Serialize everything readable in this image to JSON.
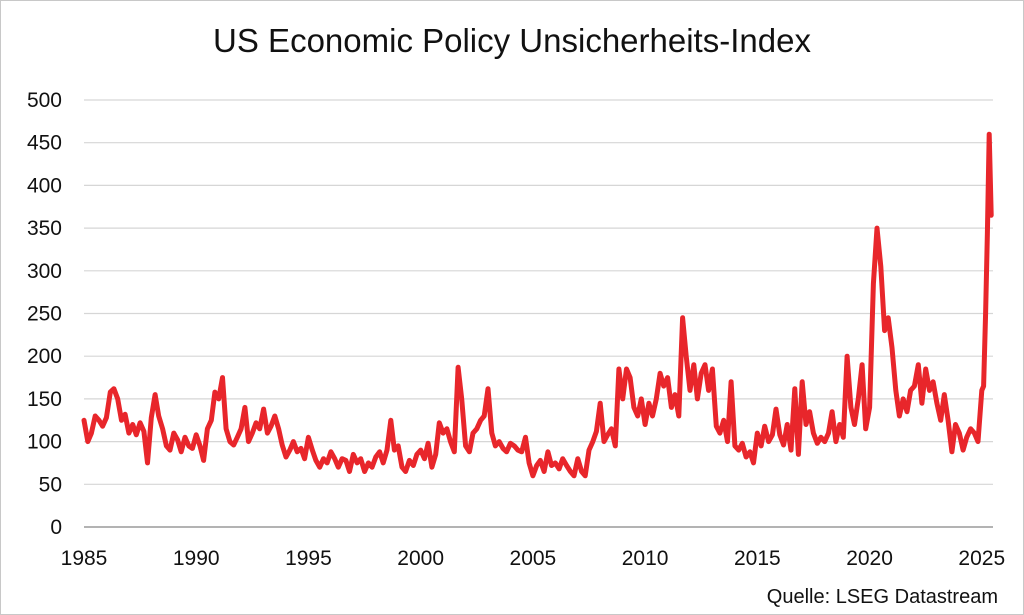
{
  "title": "US Economic Policy Unsicherheits-Index",
  "source": "Quelle: LSEG Datastream",
  "chart_data": {
    "type": "line",
    "title": "US Economic Policy Unsicherheits-Index",
    "xlabel": "",
    "ylabel": "",
    "xlim": [
      1985,
      2025.5
    ],
    "ylim": [
      0,
      500
    ],
    "x_ticks": [
      "1985",
      "1990",
      "1995",
      "2000",
      "2005",
      "2010",
      "2015",
      "2020",
      "2025"
    ],
    "y_ticks": [
      "0",
      "50",
      "100",
      "150",
      "200",
      "250",
      "300",
      "350",
      "400",
      "450",
      "500"
    ],
    "grid": "horizontal",
    "legend": "none",
    "series": [
      {
        "color": "#e8262b",
        "points": [
          [
            1985.0,
            125
          ],
          [
            1985.17,
            100
          ],
          [
            1985.33,
            110
          ],
          [
            1985.5,
            130
          ],
          [
            1985.67,
            125
          ],
          [
            1985.83,
            118
          ],
          [
            1986.0,
            128
          ],
          [
            1986.17,
            158
          ],
          [
            1986.33,
            162
          ],
          [
            1986.5,
            150
          ],
          [
            1986.67,
            125
          ],
          [
            1986.83,
            132
          ],
          [
            1987.0,
            110
          ],
          [
            1987.17,
            120
          ],
          [
            1987.33,
            108
          ],
          [
            1987.5,
            122
          ],
          [
            1987.67,
            112
          ],
          [
            1987.83,
            75
          ],
          [
            1988.0,
            128
          ],
          [
            1988.17,
            155
          ],
          [
            1988.33,
            130
          ],
          [
            1988.5,
            115
          ],
          [
            1988.67,
            95
          ],
          [
            1988.83,
            90
          ],
          [
            1989.0,
            110
          ],
          [
            1989.17,
            102
          ],
          [
            1989.33,
            88
          ],
          [
            1989.5,
            105
          ],
          [
            1989.67,
            95
          ],
          [
            1989.83,
            92
          ],
          [
            1990.0,
            108
          ],
          [
            1990.17,
            95
          ],
          [
            1990.33,
            78
          ],
          [
            1990.5,
            115
          ],
          [
            1990.67,
            125
          ],
          [
            1990.83,
            158
          ],
          [
            1991.0,
            150
          ],
          [
            1991.17,
            175
          ],
          [
            1991.33,
            115
          ],
          [
            1991.5,
            100
          ],
          [
            1991.67,
            96
          ],
          [
            1991.83,
            105
          ],
          [
            1992.0,
            115
          ],
          [
            1992.17,
            140
          ],
          [
            1992.33,
            100
          ],
          [
            1992.5,
            110
          ],
          [
            1992.67,
            122
          ],
          [
            1992.83,
            115
          ],
          [
            1993.0,
            138
          ],
          [
            1993.17,
            110
          ],
          [
            1993.33,
            118
          ],
          [
            1993.5,
            130
          ],
          [
            1993.67,
            115
          ],
          [
            1993.83,
            96
          ],
          [
            1994.0,
            82
          ],
          [
            1994.17,
            90
          ],
          [
            1994.33,
            100
          ],
          [
            1994.5,
            88
          ],
          [
            1994.67,
            92
          ],
          [
            1994.83,
            80
          ],
          [
            1995.0,
            105
          ],
          [
            1995.17,
            90
          ],
          [
            1995.33,
            78
          ],
          [
            1995.5,
            70
          ],
          [
            1995.67,
            80
          ],
          [
            1995.83,
            75
          ],
          [
            1996.0,
            88
          ],
          [
            1996.17,
            80
          ],
          [
            1996.33,
            70
          ],
          [
            1996.5,
            80
          ],
          [
            1996.67,
            78
          ],
          [
            1996.83,
            65
          ],
          [
            1997.0,
            85
          ],
          [
            1997.17,
            75
          ],
          [
            1997.33,
            80
          ],
          [
            1997.5,
            65
          ],
          [
            1997.67,
            75
          ],
          [
            1997.83,
            70
          ],
          [
            1998.0,
            82
          ],
          [
            1998.17,
            88
          ],
          [
            1998.33,
            75
          ],
          [
            1998.5,
            90
          ],
          [
            1998.67,
            125
          ],
          [
            1998.83,
            90
          ],
          [
            1999.0,
            95
          ],
          [
            1999.17,
            70
          ],
          [
            1999.33,
            65
          ],
          [
            1999.5,
            78
          ],
          [
            1999.67,
            72
          ],
          [
            1999.83,
            85
          ],
          [
            2000.0,
            90
          ],
          [
            2000.17,
            80
          ],
          [
            2000.33,
            98
          ],
          [
            2000.5,
            70
          ],
          [
            2000.67,
            85
          ],
          [
            2000.83,
            122
          ],
          [
            2001.0,
            110
          ],
          [
            2001.17,
            115
          ],
          [
            2001.33,
            100
          ],
          [
            2001.5,
            88
          ],
          [
            2001.67,
            187
          ],
          [
            2001.83,
            150
          ],
          [
            2002.0,
            95
          ],
          [
            2002.17,
            88
          ],
          [
            2002.33,
            110
          ],
          [
            2002.5,
            115
          ],
          [
            2002.67,
            125
          ],
          [
            2002.83,
            130
          ],
          [
            2003.0,
            162
          ],
          [
            2003.17,
            110
          ],
          [
            2003.33,
            95
          ],
          [
            2003.5,
            100
          ],
          [
            2003.67,
            92
          ],
          [
            2003.83,
            88
          ],
          [
            2004.0,
            98
          ],
          [
            2004.17,
            95
          ],
          [
            2004.33,
            90
          ],
          [
            2004.5,
            88
          ],
          [
            2004.67,
            105
          ],
          [
            2004.83,
            75
          ],
          [
            2005.0,
            60
          ],
          [
            2005.17,
            72
          ],
          [
            2005.33,
            78
          ],
          [
            2005.5,
            65
          ],
          [
            2005.67,
            88
          ],
          [
            2005.83,
            72
          ],
          [
            2006.0,
            75
          ],
          [
            2006.17,
            68
          ],
          [
            2006.33,
            80
          ],
          [
            2006.5,
            72
          ],
          [
            2006.67,
            65
          ],
          [
            2006.83,
            60
          ],
          [
            2007.0,
            80
          ],
          [
            2007.17,
            65
          ],
          [
            2007.33,
            60
          ],
          [
            2007.5,
            90
          ],
          [
            2007.67,
            100
          ],
          [
            2007.83,
            112
          ],
          [
            2008.0,
            145
          ],
          [
            2008.17,
            100
          ],
          [
            2008.33,
            108
          ],
          [
            2008.5,
            115
          ],
          [
            2008.67,
            95
          ],
          [
            2008.83,
            185
          ],
          [
            2009.0,
            150
          ],
          [
            2009.17,
            185
          ],
          [
            2009.33,
            175
          ],
          [
            2009.5,
            140
          ],
          [
            2009.67,
            130
          ],
          [
            2009.83,
            150
          ],
          [
            2010.0,
            120
          ],
          [
            2010.17,
            145
          ],
          [
            2010.33,
            130
          ],
          [
            2010.5,
            150
          ],
          [
            2010.67,
            180
          ],
          [
            2010.83,
            165
          ],
          [
            2011.0,
            175
          ],
          [
            2011.17,
            140
          ],
          [
            2011.33,
            155
          ],
          [
            2011.5,
            130
          ],
          [
            2011.67,
            245
          ],
          [
            2011.83,
            200
          ],
          [
            2012.0,
            160
          ],
          [
            2012.17,
            190
          ],
          [
            2012.33,
            150
          ],
          [
            2012.5,
            180
          ],
          [
            2012.67,
            190
          ],
          [
            2012.83,
            160
          ],
          [
            2013.0,
            185
          ],
          [
            2013.17,
            118
          ],
          [
            2013.33,
            110
          ],
          [
            2013.5,
            125
          ],
          [
            2013.67,
            100
          ],
          [
            2013.83,
            170
          ],
          [
            2014.0,
            95
          ],
          [
            2014.17,
            90
          ],
          [
            2014.33,
            98
          ],
          [
            2014.5,
            82
          ],
          [
            2014.67,
            88
          ],
          [
            2014.83,
            75
          ],
          [
            2015.0,
            110
          ],
          [
            2015.17,
            95
          ],
          [
            2015.33,
            118
          ],
          [
            2015.5,
            100
          ],
          [
            2015.67,
            108
          ],
          [
            2015.83,
            138
          ],
          [
            2016.0,
            108
          ],
          [
            2016.17,
            96
          ],
          [
            2016.33,
            120
          ],
          [
            2016.5,
            90
          ],
          [
            2016.67,
            162
          ],
          [
            2016.83,
            85
          ],
          [
            2017.0,
            170
          ],
          [
            2017.17,
            120
          ],
          [
            2017.33,
            135
          ],
          [
            2017.5,
            110
          ],
          [
            2017.67,
            98
          ],
          [
            2017.83,
            105
          ],
          [
            2018.0,
            100
          ],
          [
            2018.17,
            110
          ],
          [
            2018.33,
            135
          ],
          [
            2018.5,
            100
          ],
          [
            2018.67,
            120
          ],
          [
            2018.83,
            105
          ],
          [
            2019.0,
            200
          ],
          [
            2019.17,
            140
          ],
          [
            2019.33,
            120
          ],
          [
            2019.5,
            150
          ],
          [
            2019.67,
            190
          ],
          [
            2019.83,
            115
          ],
          [
            2020.0,
            140
          ],
          [
            2020.17,
            285
          ],
          [
            2020.33,
            350
          ],
          [
            2020.5,
            305
          ],
          [
            2020.67,
            230
          ],
          [
            2020.83,
            245
          ],
          [
            2021.0,
            210
          ],
          [
            2021.17,
            160
          ],
          [
            2021.33,
            130
          ],
          [
            2021.5,
            150
          ],
          [
            2021.67,
            135
          ],
          [
            2021.83,
            160
          ],
          [
            2022.0,
            165
          ],
          [
            2022.17,
            190
          ],
          [
            2022.33,
            145
          ],
          [
            2022.5,
            185
          ],
          [
            2022.67,
            160
          ],
          [
            2022.83,
            170
          ],
          [
            2023.0,
            145
          ],
          [
            2023.17,
            125
          ],
          [
            2023.33,
            155
          ],
          [
            2023.5,
            125
          ],
          [
            2023.67,
            88
          ],
          [
            2023.83,
            120
          ],
          [
            2024.0,
            110
          ],
          [
            2024.17,
            90
          ],
          [
            2024.33,
            105
          ],
          [
            2024.5,
            115
          ],
          [
            2024.67,
            110
          ],
          [
            2024.83,
            100
          ],
          [
            2025.0,
            160
          ],
          [
            2025.08,
            165
          ],
          [
            2025.17,
            250
          ],
          [
            2025.25,
            345
          ],
          [
            2025.33,
            460
          ],
          [
            2025.42,
            365
          ]
        ]
      }
    ]
  }
}
